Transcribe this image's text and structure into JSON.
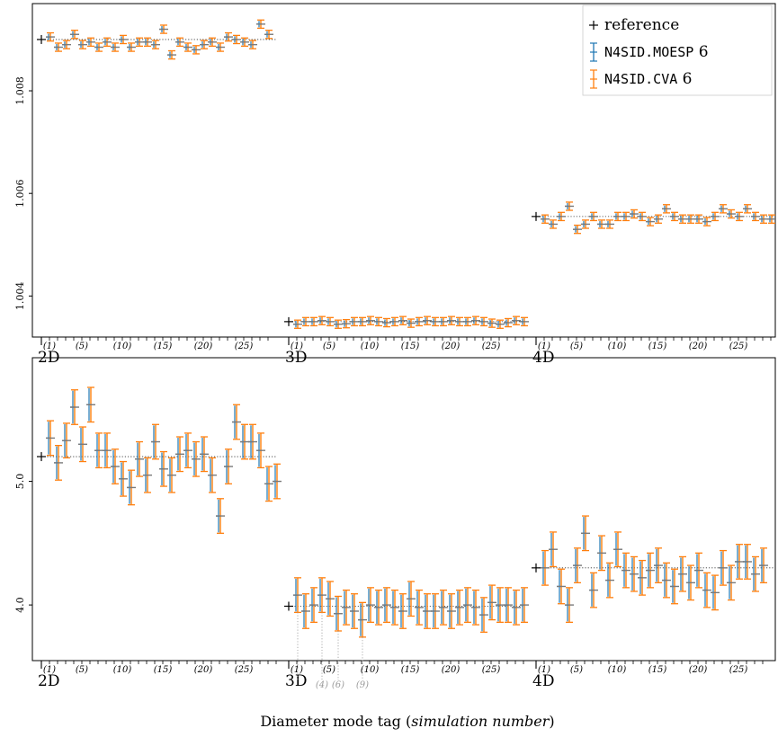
{
  "colors": {
    "reference": "#000000",
    "moesp": "#1f77b4",
    "cva": "#ff7f0e",
    "axis": "#000000",
    "annotation": "#9a9a9a"
  },
  "chart_data": [
    {
      "type": "scatter",
      "panel": "top",
      "title": "",
      "ylabel": "",
      "xlabel": "",
      "ylim": [
        1.0032,
        1.0097
      ],
      "yticks": [
        1.004,
        1.006,
        1.008
      ],
      "ytick_labels": [
        "1.004",
        "1.006",
        "1.008"
      ],
      "groups": [
        {
          "label": "2D",
          "reference": 1.009,
          "err": 8e-05,
          "values": [
            1.00905,
            1.00885,
            1.0089,
            1.0091,
            1.0089,
            1.00895,
            1.00885,
            1.00895,
            1.00885,
            1.009,
            1.00885,
            1.00895,
            1.00895,
            1.0089,
            1.0092,
            1.0087,
            1.00895,
            1.00885,
            1.0088,
            1.0089,
            1.00895,
            1.00885,
            1.00905,
            1.009,
            1.00895,
            1.0089,
            1.0093,
            1.0091
          ]
        },
        {
          "label": "3D",
          "reference": 1.0035,
          "err": 8e-05,
          "values": [
            1.00345,
            1.0035,
            1.0035,
            1.00352,
            1.0035,
            1.00345,
            1.00346,
            1.0035,
            1.0035,
            1.00352,
            1.0035,
            1.00348,
            1.0035,
            1.00352,
            1.00347,
            1.0035,
            1.00352,
            1.0035,
            1.0035,
            1.00352,
            1.0035,
            1.0035,
            1.00352,
            1.0035,
            1.00347,
            1.00345,
            1.00348,
            1.00352,
            1.0035
          ]
        },
        {
          "label": "4D",
          "reference": 1.00555,
          "err": 8e-05,
          "values": [
            1.0055,
            1.0054,
            1.00555,
            1.00575,
            1.0053,
            1.0054,
            1.00555,
            1.0054,
            1.0054,
            1.00555,
            1.00555,
            1.0056,
            1.00555,
            1.00545,
            1.0055,
            1.0057,
            1.00555,
            1.0055,
            1.0055,
            1.0055,
            1.00545,
            1.00555,
            1.0057,
            1.0056,
            1.00555,
            1.0057,
            1.00555,
            1.0055,
            1.0055
          ]
        }
      ],
      "sim_ticks": [
        "(1)",
        "(5)",
        "(10)",
        "(15)",
        "(20)",
        "(25)"
      ],
      "legend": {
        "placement": "top-right",
        "entries": [
          {
            "series": "reference",
            "text": "reference",
            "mono": false
          },
          {
            "series": "moesp",
            "text": "N4SID.MOESP",
            "suffix": " 6",
            "mono": true
          },
          {
            "series": "cva",
            "text": "N4SID.CVA",
            "suffix": " 6",
            "mono": true
          }
        ]
      }
    },
    {
      "type": "scatter",
      "panel": "bottom",
      "title": "",
      "ylabel": "",
      "xlabel": "Diameter mode tag",
      "xlabel_italic": "simulation number",
      "ylim": [
        3.55,
        6.0
      ],
      "yticks": [
        4.0,
        5.0
      ],
      "ytick_labels": [
        "4.0",
        "5.0"
      ],
      "groups": [
        {
          "label": "2D",
          "reference": 5.2,
          "err": 0.14,
          "values": [
            5.35,
            5.15,
            5.33,
            5.6,
            5.3,
            5.62,
            5.25,
            5.25,
            5.12,
            5.02,
            4.95,
            5.18,
            5.05,
            5.32,
            5.1,
            5.05,
            5.22,
            5.25,
            5.18,
            5.22,
            5.05,
            4.72,
            5.12,
            5.48,
            5.32,
            5.32,
            5.25,
            4.98,
            5.0
          ]
        },
        {
          "label": "3D",
          "reference": 3.99,
          "err": 0.14,
          "values": [
            4.08,
            3.95,
            4.0,
            4.08,
            4.05,
            3.93,
            3.98,
            3.95,
            3.88,
            4.0,
            3.98,
            4.0,
            3.98,
            3.95,
            4.05,
            3.98,
            3.95,
            3.95,
            3.98,
            3.95,
            3.98,
            4.0,
            3.98,
            3.92,
            4.02,
            4.0,
            4.0,
            3.98,
            4.0
          ]
        },
        {
          "label": "4D",
          "reference": 4.3,
          "err": 0.14,
          "values": [
            4.3,
            4.45,
            4.15,
            4.0,
            4.32,
            4.58,
            4.12,
            4.42,
            4.2,
            4.45,
            4.28,
            4.25,
            4.22,
            4.28,
            4.32,
            4.2,
            4.15,
            4.25,
            4.18,
            4.28,
            4.12,
            4.1,
            4.3,
            4.18,
            4.35,
            4.35,
            4.25,
            4.32
          ]
        }
      ],
      "sim_ticks": [
        "(1)",
        "(5)",
        "(10)",
        "(15)",
        "(20)",
        "(25)"
      ],
      "annotations": [
        {
          "group": 1,
          "sim": 1,
          "label": "(1)"
        },
        {
          "group": 1,
          "sim": 4,
          "label": "(4)"
        },
        {
          "group": 1,
          "sim": 6,
          "label": "(6)"
        },
        {
          "group": 1,
          "sim": 9,
          "label": "(9)"
        }
      ]
    }
  ]
}
